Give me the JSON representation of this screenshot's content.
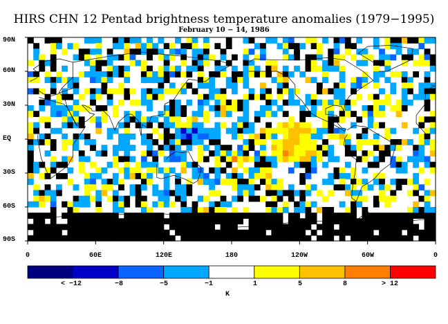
{
  "title": "HIRS CHN 12 Pentad brightness temperature anomalies (1979−1995)",
  "subtitle": "February 10 − 14, 1986",
  "lat_ticks": [
    "90N",
    "60N",
    "30N",
    "EQ",
    "30S",
    "60S",
    "90S"
  ],
  "lon_ticks": [
    "0",
    "60E",
    "120E",
    "180",
    "120W",
    "60W",
    "0"
  ],
  "colorbar": {
    "labels": [
      "< −12",
      "−8",
      "−5",
      "−1",
      "1",
      "5",
      "8",
      "> 12"
    ],
    "colors": [
      "#000080",
      "#0000c8",
      "#0a64ff",
      "#00a8ff",
      "#ffffff",
      "#ffff00",
      "#ffc000",
      "#ff8000",
      "#ff0000"
    ],
    "units": "K"
  },
  "map_colors": {
    "missing": "#000000",
    "cold_light": "#00a8ff",
    "cold_mid": "#0a64ff",
    "cold_deep": "#0000c8",
    "warm_light": "#ffff00",
    "warm_mid": "#ffc000",
    "warm_deep": "#ff8000",
    "coast": "#000000"
  }
}
